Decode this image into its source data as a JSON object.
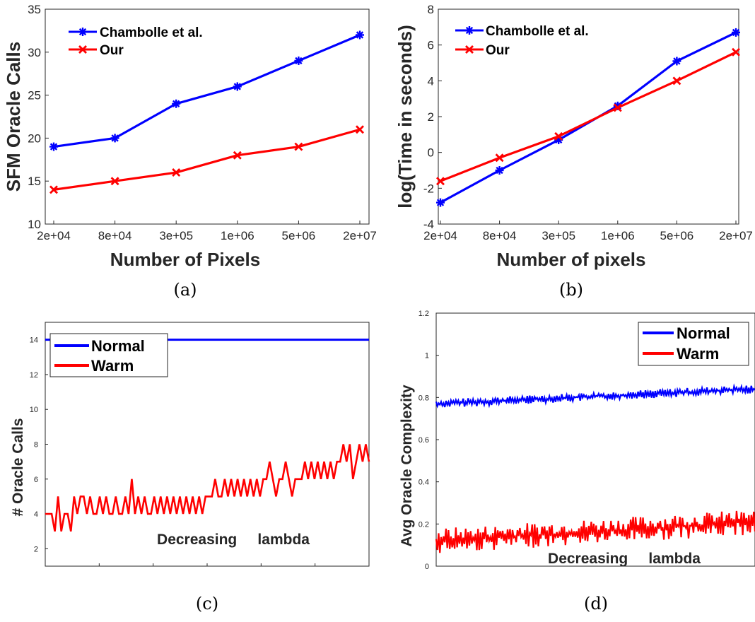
{
  "chart_data": [
    {
      "panel_label": "(a)",
      "type": "line",
      "categories": [
        "2e+04",
        "8e+04",
        "3e+05",
        "1e+06",
        "5e+06",
        "2e+07"
      ],
      "series": [
        {
          "name": "Chambolle et al.",
          "color": "#0000ff",
          "marker": "asterisk",
          "values": [
            19,
            20,
            24,
            26,
            29,
            32
          ]
        },
        {
          "name": "Our",
          "color": "#ff0000",
          "marker": "x",
          "values": [
            14,
            15,
            16,
            18,
            19,
            21
          ]
        }
      ],
      "xlabel": "Number of Pixels",
      "ylabel": "SFM Oracle Calls",
      "ylim": [
        10,
        35
      ],
      "yticks": [
        "10",
        "15",
        "20",
        "25",
        "30",
        "35"
      ],
      "legend_position": "top-left",
      "grid": false
    },
    {
      "panel_label": "(b)",
      "type": "line",
      "categories": [
        "2e+04",
        "8e+04",
        "3e+05",
        "1e+06",
        "5e+06",
        "2e+07"
      ],
      "series": [
        {
          "name": "Chambolle et al.",
          "color": "#0000ff",
          "marker": "asterisk",
          "values": [
            -2.8,
            -1.0,
            0.7,
            2.6,
            5.1,
            6.7
          ]
        },
        {
          "name": "Our",
          "color": "#ff0000",
          "marker": "x",
          "values": [
            -1.6,
            -0.3,
            0.9,
            2.5,
            4.0,
            5.6
          ]
        }
      ],
      "xlabel": "Number of pixels",
      "ylabel": "log(Time in seconds)",
      "ylim": [
        -4,
        8
      ],
      "yticks": [
        "-4",
        "-2",
        "0",
        "2",
        "4",
        "6",
        "8"
      ],
      "legend_position": "top-left",
      "grid": false
    },
    {
      "panel_label": "(c)",
      "type": "line",
      "series": [
        {
          "name": "Normal",
          "color": "#0000ff",
          "values": [
            14,
            14
          ]
        },
        {
          "name": "Warm",
          "color": "#ff0000",
          "values": [
            4,
            4,
            4,
            3,
            5,
            3,
            4,
            4,
            3,
            5,
            4,
            5,
            5,
            4,
            5,
            4,
            4,
            5,
            4,
            5,
            4,
            4,
            5,
            4,
            4,
            5,
            4,
            6,
            4,
            5,
            4,
            5,
            4,
            4,
            5,
            4,
            5,
            4,
            5,
            4,
            5,
            4,
            5,
            4,
            5,
            4,
            5,
            4,
            5,
            4,
            5,
            5,
            5,
            6,
            5,
            5,
            6,
            5,
            6,
            5,
            6,
            5,
            6,
            5,
            6,
            5,
            6,
            5,
            6,
            6,
            7,
            6,
            5,
            6,
            6,
            7,
            6,
            5,
            6,
            6,
            6,
            7,
            6,
            7,
            6,
            7,
            6,
            7,
            6,
            7,
            6,
            7,
            7,
            8,
            7,
            8,
            6,
            7,
            8,
            7,
            8,
            7
          ]
        }
      ],
      "xlabel": "Decreasing     lambda",
      "ylabel": "# Oracle Calls",
      "ylim": [
        1,
        15
      ],
      "yticks": [
        "2",
        "4",
        "6",
        "8",
        "10",
        "12",
        "14"
      ],
      "legend_position": "top-left",
      "grid": false
    },
    {
      "panel_label": "(d)",
      "type": "line",
      "series": [
        {
          "name": "Normal",
          "color": "#0000ff",
          "start": 0.77,
          "end": 0.84,
          "spread": 0.02
        },
        {
          "name": "Warm",
          "color": "#ff0000",
          "start": 0.12,
          "end": 0.21,
          "spread": 0.06
        }
      ],
      "xlabel": "Decreasing     lambda",
      "ylabel": "Avg Oracle Complexity",
      "ylim": [
        0,
        1.2
      ],
      "yticks": [
        "0",
        "0.2",
        "0.4",
        "0.6",
        "0.8",
        "1",
        "1.2"
      ],
      "legend_position": "top-right",
      "grid": false
    }
  ]
}
